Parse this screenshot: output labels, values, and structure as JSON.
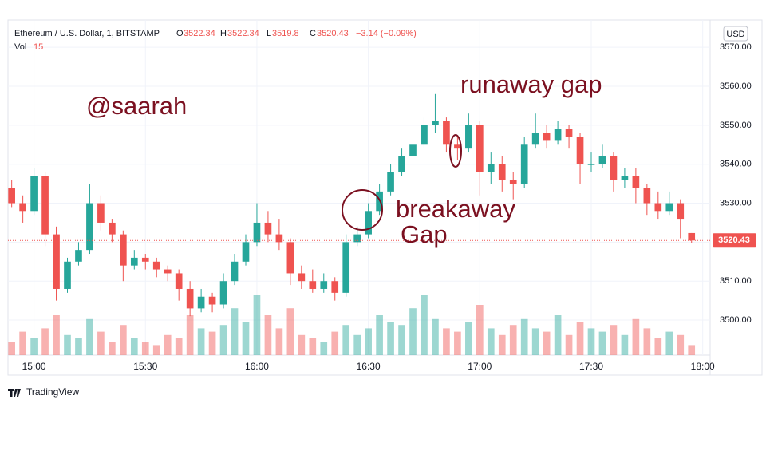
{
  "chart_data": {
    "type": "candlestick",
    "header": {
      "symbol": "Ethereum / U.S. Dollar, 1, BITSTAMP",
      "open_key": "O",
      "high_key": "H",
      "low_key": "L",
      "close_key": "C",
      "change": "−3.14 (−0.09%)",
      "volume_key": "Vol",
      "currency": "USD"
    },
    "annotations": [
      "@saarah",
      "runaway gap",
      "breakaway",
      "Gap"
    ],
    "brand": "TradingView",
    "up_color": "#26a69a",
    "down_color": "#ef5350",
    "x": [
      "14:54",
      "14:57",
      "15:00",
      "15:03",
      "15:06",
      "15:09",
      "15:12",
      "15:15",
      "15:18",
      "15:21",
      "15:24",
      "15:27",
      "15:30",
      "15:33",
      "15:36",
      "15:39",
      "15:42",
      "15:45",
      "15:48",
      "15:51",
      "15:54",
      "15:57",
      "16:00",
      "16:03",
      "16:06",
      "16:09",
      "16:12",
      "16:15",
      "16:18",
      "16:21",
      "16:24",
      "16:27",
      "16:30",
      "16:33",
      "16:36",
      "16:39",
      "16:42",
      "16:45",
      "16:48",
      "16:51",
      "16:54",
      "16:57",
      "17:00",
      "17:03",
      "17:06",
      "17:09",
      "17:12",
      "17:15",
      "17:18",
      "17:21",
      "17:24",
      "17:27",
      "17:30",
      "17:33",
      "17:36",
      "17:39",
      "17:42",
      "17:45",
      "17:48",
      "17:51",
      "17:54",
      "17:57"
    ],
    "ohlc": [
      [
        3534,
        3536,
        3529,
        3530
      ],
      [
        3530,
        3532,
        3525,
        3528
      ],
      [
        3528,
        3539,
        3527,
        3537
      ],
      [
        3537,
        3538,
        3519,
        3522
      ],
      [
        3522,
        3524,
        3505,
        3508
      ],
      [
        3508,
        3516,
        3507,
        3515
      ],
      [
        3515,
        3520,
        3514,
        3518
      ],
      [
        3518,
        3535,
        3517,
        3530
      ],
      [
        3530,
        3532,
        3523,
        3525
      ],
      [
        3525,
        3526,
        3520,
        3522
      ],
      [
        3522,
        3523,
        3510,
        3514
      ],
      [
        3514,
        3518,
        3513,
        3516
      ],
      [
        3516,
        3517,
        3513,
        3515
      ],
      [
        3515,
        3516,
        3511,
        3513
      ],
      [
        3513,
        3514,
        3510,
        3512
      ],
      [
        3512,
        3513,
        3505,
        3508
      ],
      [
        3508,
        3510,
        3501,
        3503
      ],
      [
        3503,
        3508,
        3502,
        3506
      ],
      [
        3506,
        3507,
        3502,
        3504
      ],
      [
        3504,
        3512,
        3503,
        3510
      ],
      [
        3510,
        3517,
        3509,
        3515
      ],
      [
        3515,
        3522,
        3514,
        3520
      ],
      [
        3520,
        3530,
        3519,
        3525
      ],
      [
        3525,
        3528,
        3520,
        3522
      ],
      [
        3522,
        3526,
        3518,
        3520
      ],
      [
        3520,
        3521,
        3509,
        3512
      ],
      [
        3512,
        3514,
        3508,
        3510
      ],
      [
        3510,
        3513,
        3507,
        3508
      ],
      [
        3508,
        3512,
        3507,
        3510
      ],
      [
        3510,
        3511,
        3505,
        3507
      ],
      [
        3507,
        3522,
        3506,
        3520
      ],
      [
        3520,
        3524,
        3519,
        3522
      ],
      [
        3522,
        3530,
        3521,
        3528
      ],
      [
        3528,
        3535,
        3527,
        3533
      ],
      [
        3533,
        3540,
        3532,
        3538
      ],
      [
        3538,
        3544,
        3537,
        3542
      ],
      [
        3542,
        3547,
        3540,
        3545
      ],
      [
        3545,
        3552,
        3544,
        3550
      ],
      [
        3550,
        3558,
        3548,
        3551
      ],
      [
        3551,
        3552,
        3543,
        3545
      ],
      [
        3545,
        3547,
        3541,
        3544
      ],
      [
        3544,
        3553,
        3543,
        3550
      ],
      [
        3550,
        3551,
        3532,
        3538
      ],
      [
        3538,
        3543,
        3535,
        3540
      ],
      [
        3540,
        3542,
        3533,
        3536
      ],
      [
        3536,
        3538,
        3531,
        3535
      ],
      [
        3535,
        3547,
        3534,
        3545
      ],
      [
        3545,
        3553,
        3544,
        3548
      ],
      [
        3548,
        3550,
        3544,
        3546
      ],
      [
        3546,
        3551,
        3545,
        3549
      ],
      [
        3549,
        3550,
        3544,
        3547
      ],
      [
        3547,
        3548,
        3535,
        3540
      ],
      [
        3540,
        3543,
        3538,
        3540
      ],
      [
        3540,
        3545,
        3539,
        3542
      ],
      [
        3542,
        3543,
        3533,
        3536
      ],
      [
        3536,
        3539,
        3534,
        3537
      ],
      [
        3537,
        3539,
        3530,
        3534
      ],
      [
        3534,
        3535,
        3527,
        3530
      ],
      [
        3530,
        3533,
        3526,
        3528
      ],
      [
        3528,
        3533,
        3527,
        3530
      ],
      [
        3530,
        3531,
        3521,
        3526
      ],
      [
        3522.34,
        3522.34,
        3519.8,
        3520.43
      ]
    ],
    "volume": [
      20,
      35,
      25,
      40,
      60,
      30,
      25,
      55,
      35,
      20,
      45,
      25,
      20,
      15,
      30,
      25,
      60,
      40,
      35,
      45,
      70,
      50,
      90,
      60,
      40,
      70,
      30,
      25,
      20,
      35,
      45,
      30,
      40,
      60,
      50,
      45,
      70,
      90,
      55,
      40,
      35,
      50,
      75,
      40,
      30,
      45,
      55,
      40,
      35,
      60,
      30,
      50,
      40,
      35,
      45,
      30,
      55,
      40,
      25,
      35,
      30,
      15
    ],
    "volume_lim": [
      0,
      500
    ],
    "xlim": [
      "14:53",
      "18:02"
    ],
    "xticks": [
      "15:00",
      "15:30",
      "16:00",
      "16:30",
      "17:00",
      "17:30",
      "18:00"
    ],
    "ylim": [
      3491,
      3577
    ],
    "yticks": [
      {
        "value": 3500,
        "label": "3500.00"
      },
      {
        "value": 3510,
        "label": "3510.00"
      },
      {
        "value": 3520,
        "label": "3520.00"
      },
      {
        "value": 3530,
        "label": "3530.00"
      },
      {
        "value": 3540,
        "label": "3540.00"
      },
      {
        "value": 3550,
        "label": "3550.00"
      },
      {
        "value": 3560,
        "label": "3560.00"
      },
      {
        "value": 3570,
        "label": "3570.00"
      }
    ]
  }
}
